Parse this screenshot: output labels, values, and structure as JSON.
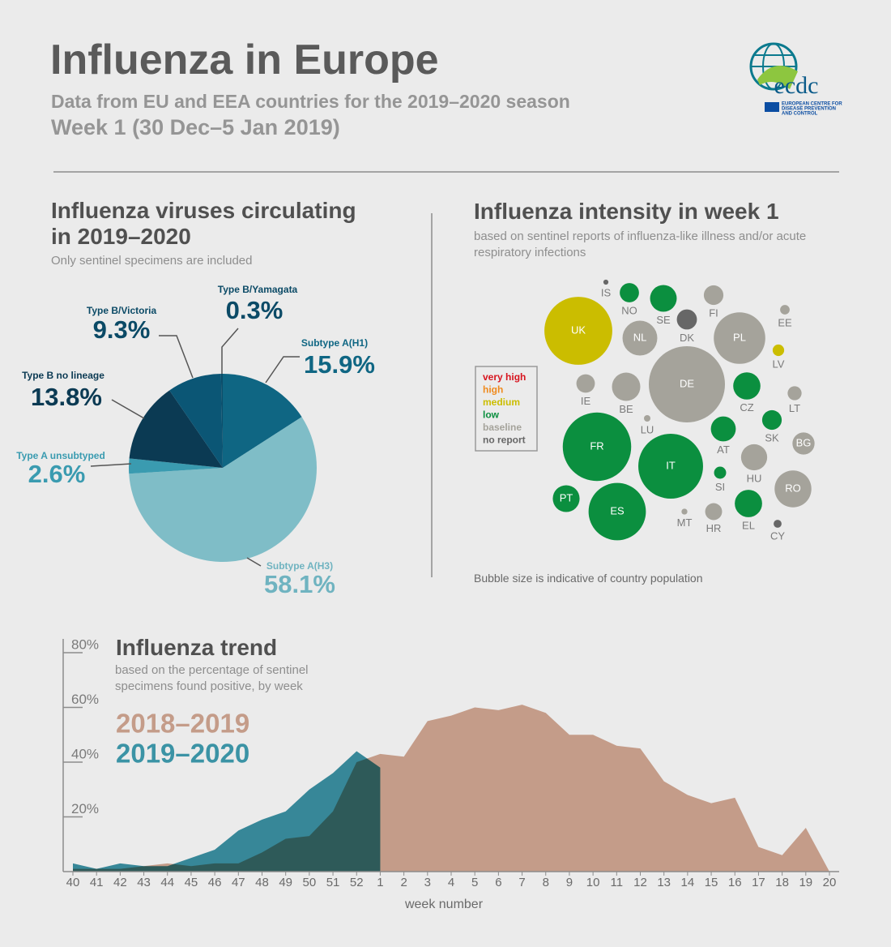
{
  "header": {
    "title": "Influenza in Europe",
    "subtitle": "Data from EU and EEA countries for the 2019–2020 season",
    "week": "Week 1 (30 Dec–5 Jan 2019)",
    "logo": {
      "name": "ecdc",
      "lines": [
        "EUROPEAN CENTRE FOR",
        "DISEASE PREVENTION",
        "AND CONTROL"
      ]
    }
  },
  "chart_data": [
    {
      "type": "pie",
      "title": "Influenza viruses circulating in 2019–2020",
      "subtitle": "Only sentinel specimens are included",
      "categories": [
        "Subtype A(H1)",
        "Subtype A(H3)",
        "Type A unsubtyped",
        "Type B no lineage",
        "Type B/Victoria",
        "Type B/Yamagata"
      ],
      "values": [
        15.9,
        58.1,
        2.6,
        13.8,
        9.3,
        0.3
      ],
      "value_labels": [
        "15.9%",
        "58.1%",
        "2.6%",
        "13.8%",
        "9.3%",
        "0.3%"
      ],
      "colors": [
        "#0f6683",
        "#7fbdc7",
        "#3a9bb0",
        "#0b3a53",
        "#0b5675",
        "#0c4e6a"
      ],
      "label_colors": [
        "#0f6683",
        "#6fb3c0",
        "#3a9bb0",
        "#0b3a53",
        "#0b4a66",
        "#0b4a66"
      ]
    },
    {
      "type": "bubble",
      "title": "Influenza intensity in week 1",
      "subtitle": "based on sentinel reports of influenza-like illness and/or acute respiratory infections",
      "footnote": "Bubble size is indicative of country population",
      "categories": [
        "IS",
        "NO",
        "SE",
        "FI",
        "DK",
        "EE",
        "UK",
        "NL",
        "PL",
        "LV",
        "DE",
        "IE",
        "BE",
        "CZ",
        "LT",
        "LU",
        "SK",
        "FR",
        "AT",
        "BG",
        "IT",
        "HU",
        "SI",
        "RO",
        "PT",
        "ES",
        "MT",
        "HR",
        "EL",
        "CY"
      ],
      "values": [
        0.36,
        5.3,
        10.2,
        5.5,
        5.8,
        1.3,
        66,
        17.3,
        38,
        1.9,
        83,
        4.9,
        11.5,
        10.6,
        2.8,
        0.6,
        5.5,
        67,
        8.9,
        7,
        60,
        9.8,
        2.1,
        19.4,
        10.3,
        47,
        0.5,
        4.1,
        10.7,
        0.9
      ],
      "levels": [
        "no report",
        "low",
        "low",
        "baseline",
        "no report",
        "baseline",
        "medium",
        "baseline",
        "baseline",
        "medium",
        "baseline",
        "baseline",
        "baseline",
        "low",
        "baseline",
        "baseline",
        "low",
        "low",
        "low",
        "baseline",
        "low",
        "baseline",
        "low",
        "baseline",
        "low",
        "low",
        "baseline",
        "baseline",
        "low",
        "no report"
      ],
      "legend": [
        {
          "name": "very high",
          "color": "#d7141e"
        },
        {
          "name": "high",
          "color": "#ef8a1e"
        },
        {
          "name": "medium",
          "color": "#cbbd00"
        },
        {
          "name": "low",
          "color": "#0b8f3f"
        },
        {
          "name": "baseline",
          "color": "#a5a39b"
        },
        {
          "name": "no report",
          "color": "#676767"
        }
      ]
    },
    {
      "type": "area",
      "title": "Influenza trend",
      "subtitle": "based on the percentage of sentinel specimens found positive, by week",
      "xlabel": "week number",
      "categories": [
        "40",
        "41",
        "42",
        "43",
        "44",
        "45",
        "46",
        "47",
        "48",
        "49",
        "50",
        "51",
        "52",
        "1",
        "2",
        "3",
        "4",
        "5",
        "6",
        "7",
        "8",
        "9",
        "10",
        "11",
        "12",
        "13",
        "14",
        "15",
        "16",
        "17",
        "18",
        "19",
        "20"
      ],
      "series": [
        {
          "name": "2018–2019",
          "color": "#c49c89",
          "values": [
            1,
            1,
            1,
            2,
            3,
            2,
            3,
            3,
            7,
            12,
            13,
            22,
            40,
            43,
            42,
            55,
            57,
            60,
            59,
            61,
            58,
            50,
            50,
            46,
            45,
            33,
            28,
            25,
            27,
            9,
            6,
            16,
            0
          ]
        },
        {
          "name": "2019–2020",
          "color": "#3b93a5",
          "values": [
            3,
            1,
            3,
            2,
            2,
            5,
            8,
            15,
            19,
            22,
            30,
            36,
            44,
            38,
            null,
            null,
            null,
            null,
            null,
            null,
            null,
            null,
            null,
            null,
            null,
            null,
            null,
            null,
            null,
            null,
            null,
            null,
            null
          ]
        }
      ],
      "ylim": [
        0,
        80
      ],
      "yticks": [
        {
          "value": 20,
          "label": "20%"
        },
        {
          "value": 40,
          "label": "40%"
        },
        {
          "value": 60,
          "label": "60%"
        },
        {
          "value": 80,
          "label": "80%"
        }
      ]
    }
  ]
}
